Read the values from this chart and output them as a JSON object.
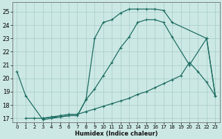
{
  "xlabel": "Humidex (Indice chaleur)",
  "xlim": [
    -0.5,
    23.5
  ],
  "ylim": [
    16.7,
    25.7
  ],
  "yticks": [
    17,
    18,
    19,
    20,
    21,
    22,
    23,
    24,
    25
  ],
  "xticks": [
    0,
    1,
    2,
    3,
    4,
    5,
    6,
    7,
    8,
    9,
    10,
    11,
    12,
    13,
    14,
    15,
    16,
    17,
    18,
    19,
    20,
    21,
    22,
    23
  ],
  "bg_color": "#cce8e4",
  "grid_color": "#aacfcb",
  "line_color": "#1a6b60",
  "curve1": {
    "x": [
      0,
      1,
      3,
      4,
      5,
      6,
      7,
      8,
      9,
      10,
      11,
      12,
      13,
      14,
      15,
      16,
      17,
      18,
      20,
      22,
      23
    ],
    "y": [
      20.5,
      18.7,
      16.9,
      17.0,
      17.1,
      17.2,
      17.2,
      18.4,
      19.2,
      20.2,
      21.2,
      22.3,
      23.1,
      24.2,
      24.4,
      24.4,
      24.2,
      23.1,
      21.0,
      23.0,
      18.7
    ]
  },
  "curve2": {
    "x": [
      3,
      4,
      5,
      6,
      7,
      8,
      9,
      10,
      11,
      12,
      13,
      14,
      15,
      16,
      17,
      18,
      22,
      23
    ],
    "y": [
      17.0,
      17.1,
      17.1,
      17.2,
      17.2,
      18.4,
      23.0,
      24.2,
      24.4,
      24.9,
      25.2,
      25.2,
      25.2,
      25.2,
      25.1,
      24.2,
      23.0,
      18.7
    ]
  },
  "curve3": {
    "x": [
      1,
      2,
      3,
      4,
      5,
      6,
      7,
      8,
      9,
      10,
      11,
      12,
      13,
      14,
      15,
      16,
      17,
      18,
      19,
      20,
      21,
      22,
      23
    ],
    "y": [
      17.0,
      17.0,
      17.0,
      17.1,
      17.2,
      17.3,
      17.3,
      17.5,
      17.7,
      17.9,
      18.1,
      18.3,
      18.5,
      18.8,
      19.0,
      19.3,
      19.6,
      19.9,
      20.2,
      21.2,
      20.5,
      19.7,
      18.7
    ]
  }
}
